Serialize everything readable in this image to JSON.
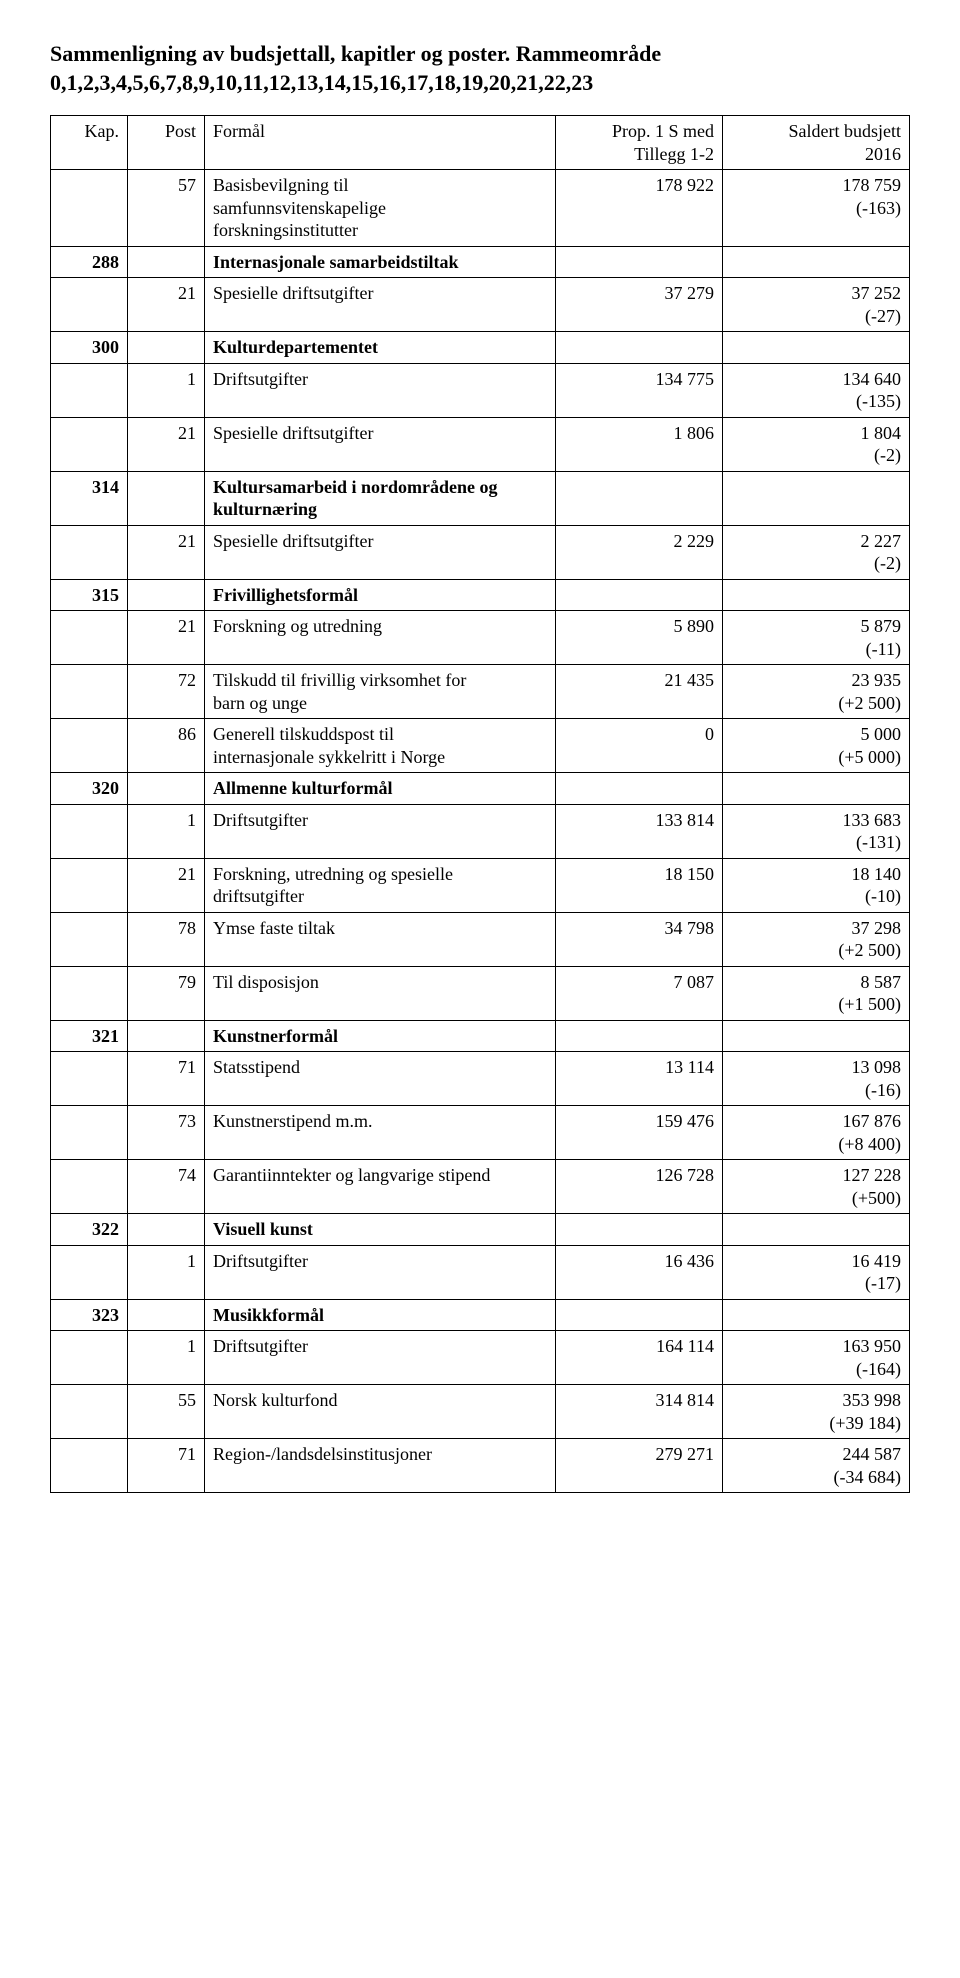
{
  "title": "Sammenligning av budsjettall, kapitler og poster. Rammeområde 0,1,2,3,4,5,6,7,8,9,10,11,12,13,14,15,16,17,18,19,20,21,22,23",
  "header": {
    "kap": "Kap.",
    "post": "Post",
    "formal": "Formål",
    "prop_l1": "Prop. 1 S med",
    "prop_l2": "Tillegg 1-2",
    "saldert_l1": "Saldert budsjett",
    "saldert_l2": "2016"
  },
  "r": {
    "r0": {
      "kap": "",
      "post": "57",
      "formal_l1": "Basisbevilgning til",
      "formal_l2": "samfunnsvitenskapelige",
      "formal_l3": "forskningsinstitutter",
      "prop": "178 922",
      "val": "178 759",
      "diff": "(-163)"
    },
    "r1": {
      "kap": "288",
      "formal": "Internasjonale samarbeidstiltak"
    },
    "r2": {
      "kap": "",
      "post": "21",
      "formal": "Spesielle driftsutgifter",
      "prop": "37 279",
      "val": "37 252",
      "diff": "(-27)"
    },
    "r3": {
      "kap": "300",
      "formal": "Kulturdepartementet"
    },
    "r4": {
      "kap": "",
      "post": "1",
      "formal": "Driftsutgifter",
      "prop": "134 775",
      "val": "134 640",
      "diff": "(-135)"
    },
    "r5": {
      "kap": "",
      "post": "21",
      "formal": "Spesielle driftsutgifter",
      "prop": "1 806",
      "val": "1 804",
      "diff": "(-2)"
    },
    "r6": {
      "kap": "314",
      "formal": "Kultursamarbeid i nordområdene og kulturnæring"
    },
    "r7": {
      "kap": "",
      "post": "21",
      "formal": "Spesielle driftsutgifter",
      "prop": "2 229",
      "val": "2 227",
      "diff": "(-2)"
    },
    "r8": {
      "kap": "315",
      "formal": "Frivillighetsformål"
    },
    "r9": {
      "kap": "",
      "post": "21",
      "formal": "Forskning og utredning",
      "prop": "5 890",
      "val": "5 879",
      "diff": "(-11)"
    },
    "r10": {
      "kap": "",
      "post": "72",
      "formal_l1": "Tilskudd til frivillig virksomhet for",
      "formal_l2": "barn og unge",
      "prop": "21 435",
      "val": "23 935",
      "diff": "(+2 500)"
    },
    "r11": {
      "kap": "",
      "post": "86",
      "formal_l1": "Generell tilskuddspost til",
      "formal_l2": "internasjonale sykkelritt i Norge",
      "prop": "0",
      "val": "5 000",
      "diff": "(+5 000)"
    },
    "r12": {
      "kap": "320",
      "formal": "Allmenne kulturformål"
    },
    "r13": {
      "kap": "",
      "post": "1",
      "formal": "Driftsutgifter",
      "prop": "133 814",
      "val": "133 683",
      "diff": "(-131)"
    },
    "r14": {
      "kap": "",
      "post": "21",
      "formal_l1": "Forskning, utredning og spesielle",
      "formal_l2": "driftsutgifter",
      "prop": "18 150",
      "val": "18 140",
      "diff": "(-10)"
    },
    "r15": {
      "kap": "",
      "post": "78",
      "formal": "Ymse faste tiltak",
      "prop": "34 798",
      "val": "37 298",
      "diff": "(+2 500)"
    },
    "r16": {
      "kap": "",
      "post": "79",
      "formal": "Til disposisjon",
      "prop": "7 087",
      "val": "8 587",
      "diff": "(+1 500)"
    },
    "r17": {
      "kap": "321",
      "formal": "Kunstnerformål"
    },
    "r18": {
      "kap": "",
      "post": "71",
      "formal": "Statsstipend",
      "prop": "13 114",
      "val": "13 098",
      "diff": "(-16)"
    },
    "r19": {
      "kap": "",
      "post": "73",
      "formal": "Kunstnerstipend m.m.",
      "prop": "159 476",
      "val": "167 876",
      "diff": "(+8 400)"
    },
    "r20": {
      "kap": "",
      "post": "74",
      "formal": "Garantiinntekter og langvarige stipend",
      "prop": "126 728",
      "val": "127 228",
      "diff": "(+500)"
    },
    "r21": {
      "kap": "322",
      "formal": "Visuell kunst"
    },
    "r22": {
      "kap": "",
      "post": "1",
      "formal": "Driftsutgifter",
      "prop": "16 436",
      "val": "16 419",
      "diff": "(-17)"
    },
    "r23": {
      "kap": "323",
      "formal": "Musikkformål"
    },
    "r24": {
      "kap": "",
      "post": "1",
      "formal": "Driftsutgifter",
      "prop": "164 114",
      "val": "163 950",
      "diff": "(-164)"
    },
    "r25": {
      "kap": "",
      "post": "55",
      "formal": "Norsk kulturfond",
      "prop": "314 814",
      "val": "353 998",
      "diff": "(+39 184)"
    },
    "r26": {
      "kap": "",
      "post": "71",
      "formal": "Region-/landsdelsinstitusjoner",
      "prop": "279 271",
      "val": "244 587",
      "diff": "(-34 684)"
    }
  }
}
